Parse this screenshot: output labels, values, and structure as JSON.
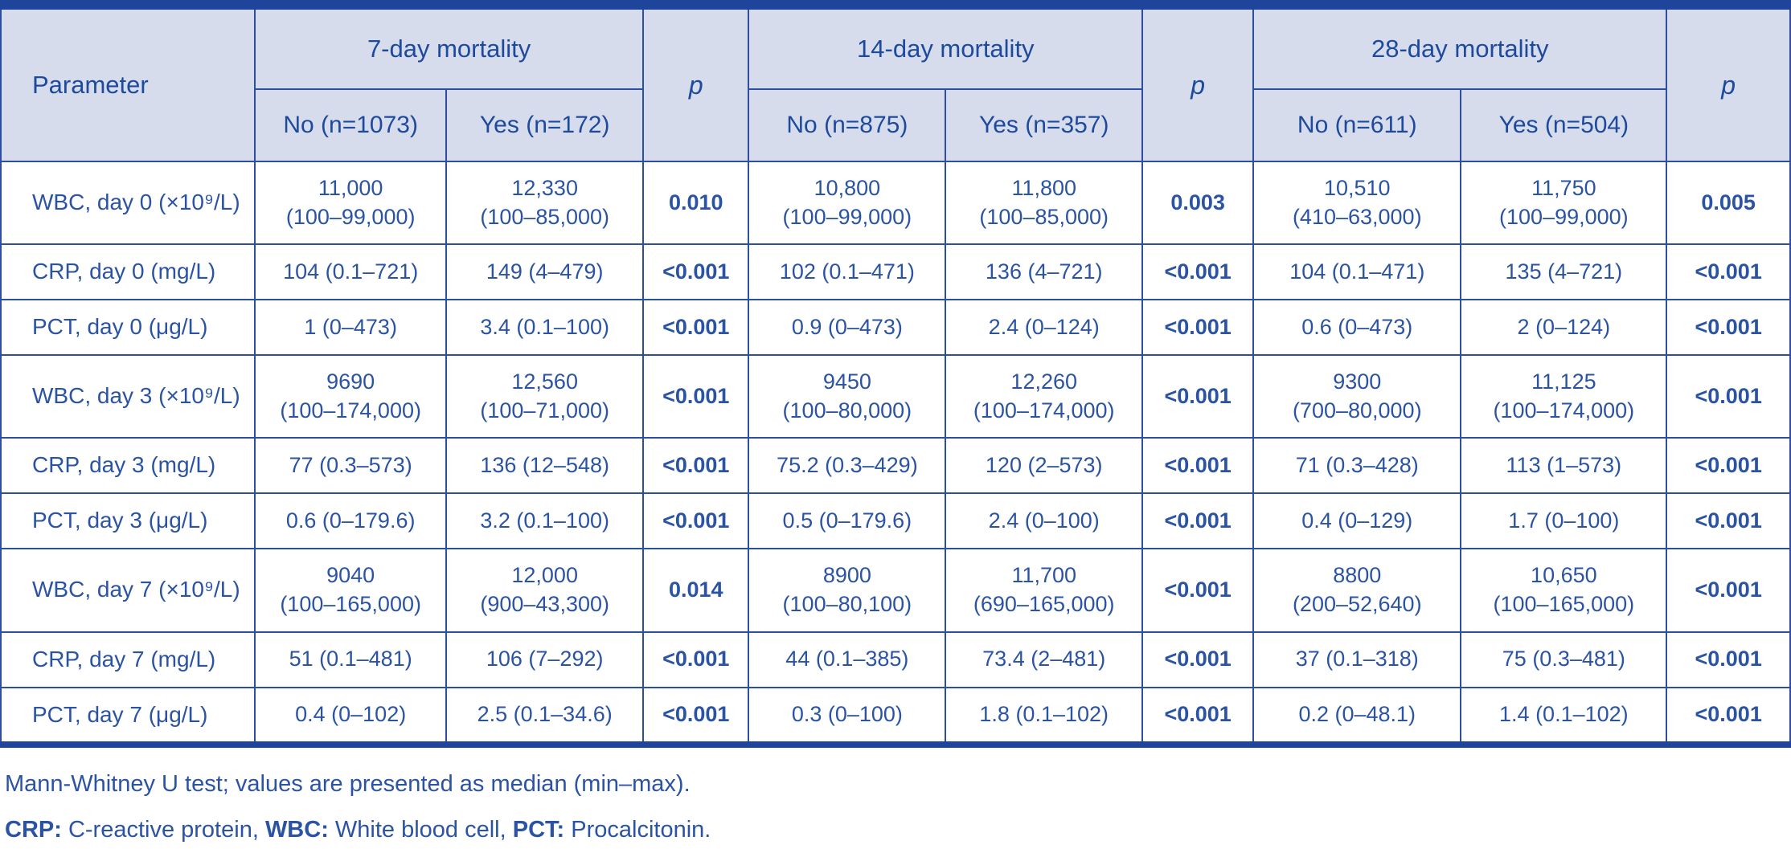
{
  "colors": {
    "top_rule": "#1f449b",
    "grid_line": "#2d4f9f",
    "header_fill": "#d6dcec",
    "header_text": "#1d4a9c",
    "body_text": "#2b53a4",
    "body_fill": "#ffffff"
  },
  "table": {
    "header": {
      "parameter": "Parameter",
      "groups": [
        {
          "label": "7-day mortality",
          "no": "No (n=1073)",
          "yes": "Yes (n=172)",
          "p": "p"
        },
        {
          "label": "14-day mortality",
          "no": "No (n=875)",
          "yes": "Yes (n=357)",
          "p": "p"
        },
        {
          "label": "28-day mortality",
          "no": "No (n=611)",
          "yes": "Yes (n=504)",
          "p": "p"
        }
      ]
    },
    "rows": [
      {
        "parameter": "WBC, day 0 (×10⁹/L)",
        "cells": [
          "11,000\n(100–99,000)",
          "12,330\n(100–85,000)",
          "0.010",
          "10,800\n(100–99,000)",
          "11,800\n(100–85,000)",
          "0.003",
          "10,510\n(410–63,000)",
          "11,750\n(100–99,000)",
          "0.005"
        ]
      },
      {
        "parameter": "CRP, day 0 (mg/L)",
        "cells": [
          "104 (0.1–721)",
          "149 (4–479)",
          "<0.001",
          "102 (0.1–471)",
          "136 (4–721)",
          "<0.001",
          "104 (0.1–471)",
          "135 (4–721)",
          "<0.001"
        ]
      },
      {
        "parameter": "PCT, day 0 (μg/L)",
        "cells": [
          "1 (0–473)",
          "3.4 (0.1–100)",
          "<0.001",
          "0.9 (0–473)",
          "2.4 (0–124)",
          "<0.001",
          "0.6 (0–473)",
          "2 (0–124)",
          "<0.001"
        ]
      },
      {
        "parameter": "WBC, day 3 (×10⁹/L)",
        "cells": [
          "9690\n(100–174,000)",
          "12,560\n(100–71,000)",
          "<0.001",
          "9450\n(100–80,000)",
          "12,260\n(100–174,000)",
          "<0.001",
          "9300\n(700–80,000)",
          "11,125\n(100–174,000)",
          "<0.001"
        ]
      },
      {
        "parameter": "CRP, day 3 (mg/L)",
        "cells": [
          "77 (0.3–573)",
          "136 (12–548)",
          "<0.001",
          "75.2 (0.3–429)",
          "120 (2–573)",
          "<0.001",
          "71 (0.3–428)",
          "113 (1–573)",
          "<0.001"
        ]
      },
      {
        "parameter": "PCT, day 3 (μg/L)",
        "cells": [
          "0.6 (0–179.6)",
          "3.2 (0.1–100)",
          "<0.001",
          "0.5 (0–179.6)",
          "2.4 (0–100)",
          "<0.001",
          "0.4 (0–129)",
          "1.7 (0–100)",
          "<0.001"
        ]
      },
      {
        "parameter": "WBC, day 7 (×10⁹/L)",
        "cells": [
          "9040\n(100–165,000)",
          "12,000\n(900–43,300)",
          "0.014",
          "8900\n(100–80,100)",
          "11,700\n(690–165,000)",
          "<0.001",
          "8800\n(200–52,640)",
          "10,650\n(100–165,000)",
          "<0.001"
        ]
      },
      {
        "parameter": "CRP, day 7 (mg/L)",
        "cells": [
          "51 (0.1–481)",
          "106 (7–292)",
          "<0.001",
          "44 (0.1–385)",
          "73.4 (2–481)",
          "<0.001",
          "37 (0.1–318)",
          "75 (0.3–481)",
          "<0.001"
        ]
      },
      {
        "parameter": "PCT, day 7 (μg/L)",
        "cells": [
          "0.4 (0–102)",
          "2.5 (0.1–34.6)",
          "<0.001",
          "0.3 (0–100)",
          "1.8 (0.1–102)",
          "<0.001",
          "0.2 (0–48.1)",
          "1.4 (0.1–102)",
          "<0.001"
        ]
      }
    ]
  },
  "footnotes": {
    "line1": "Mann-Whitney U test; values are presented as median (min–max).",
    "line2_parts": [
      {
        "label": "CRP:",
        "text": " C-reactive protein, "
      },
      {
        "label": "WBC:",
        "text": " White blood cell, "
      },
      {
        "label": "PCT:",
        "text": " Procalcitonin."
      }
    ]
  }
}
